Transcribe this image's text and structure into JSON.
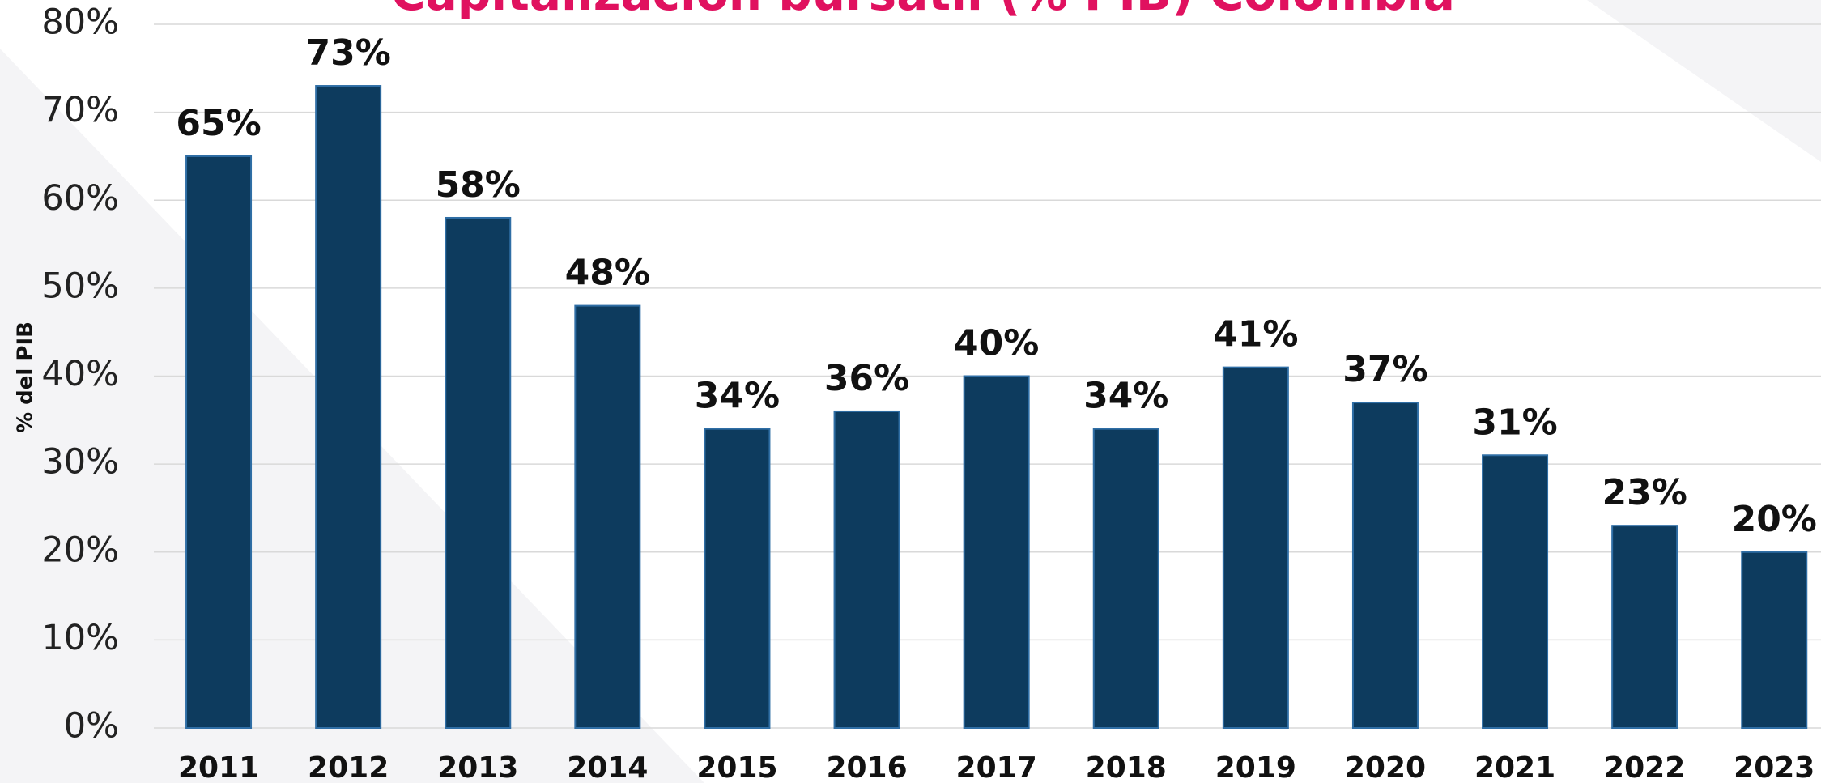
{
  "chart_data": {
    "type": "bar",
    "title": "Capitalización bursátil (% PIB) Colombia",
    "y_label": "% del PIB",
    "categories": [
      "2011",
      "2012",
      "2013",
      "2014",
      "2015",
      "2016",
      "2017",
      "2018",
      "2019",
      "2020",
      "2021",
      "2022",
      "2023"
    ],
    "values": [
      65,
      73,
      58,
      48,
      34,
      36,
      40,
      34,
      41,
      37,
      31,
      23,
      20
    ],
    "value_labels": [
      "65%",
      "73%",
      "58%",
      "48%",
      "34%",
      "36%",
      "40%",
      "34%",
      "41%",
      "37%",
      "31%",
      "23%",
      "20%"
    ],
    "color": "#0d3b5e",
    "ylim": [
      0,
      80
    ],
    "yticks": [
      {
        "value": 0,
        "label": "0%"
      },
      {
        "value": 10,
        "label": "10%"
      },
      {
        "value": 20,
        "label": "20%"
      },
      {
        "value": 30,
        "label": "30%"
      },
      {
        "value": 40,
        "label": "40%"
      },
      {
        "value": 50,
        "label": "50%"
      },
      {
        "value": 60,
        "label": "60%"
      },
      {
        "value": 70,
        "label": "70%"
      },
      {
        "value": 80,
        "label": "80%"
      }
    ],
    "grid": true
  }
}
